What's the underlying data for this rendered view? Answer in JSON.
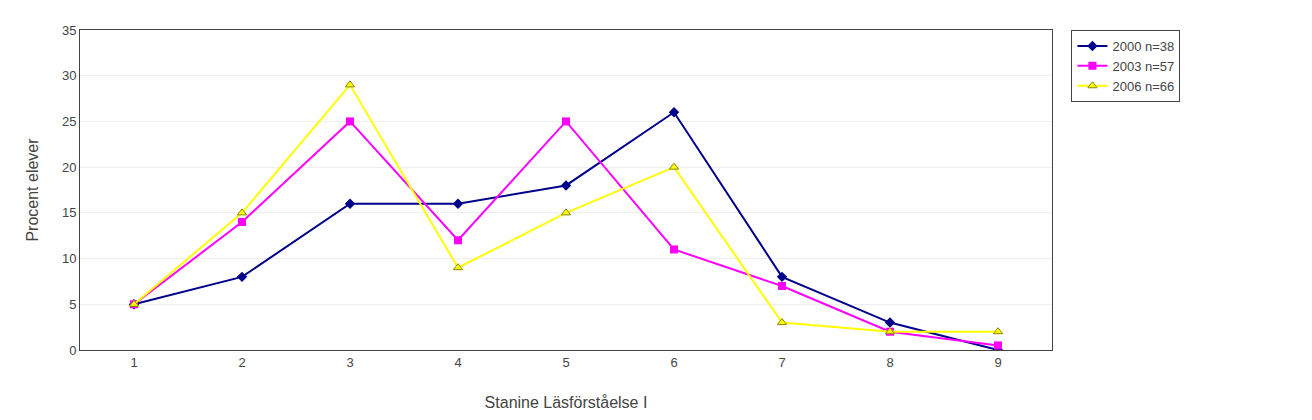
{
  "chart_data": {
    "type": "line",
    "x": [
      1,
      2,
      3,
      4,
      5,
      6,
      7,
      8,
      9
    ],
    "series": [
      {
        "name": "2000 n=38",
        "color": "#00008B",
        "marker": "diamond",
        "values": [
          5,
          8,
          16,
          16,
          18,
          26,
          8,
          3,
          0
        ]
      },
      {
        "name": "2003 n=57",
        "color": "#FF00FF",
        "marker": "square",
        "values": [
          5,
          14,
          25,
          12,
          25,
          11,
          7,
          2,
          0.5
        ]
      },
      {
        "name": "2006 n=66",
        "color": "#FFFF00",
        "marker": "triangle-up",
        "values": [
          5,
          15,
          29,
          9,
          15,
          20,
          3,
          2,
          2
        ]
      }
    ],
    "xlabel": "Stanine Läsförståelse I",
    "ylabel": "Procent elever",
    "xlim": [
      0.5,
      9.5
    ],
    "ylim": [
      0,
      35
    ],
    "xticks": [
      1,
      2,
      3,
      4,
      5,
      6,
      7,
      8,
      9
    ],
    "yticks": [
      0,
      5,
      10,
      15,
      20,
      25,
      30,
      35
    ],
    "grid": true,
    "legend": "right"
  }
}
